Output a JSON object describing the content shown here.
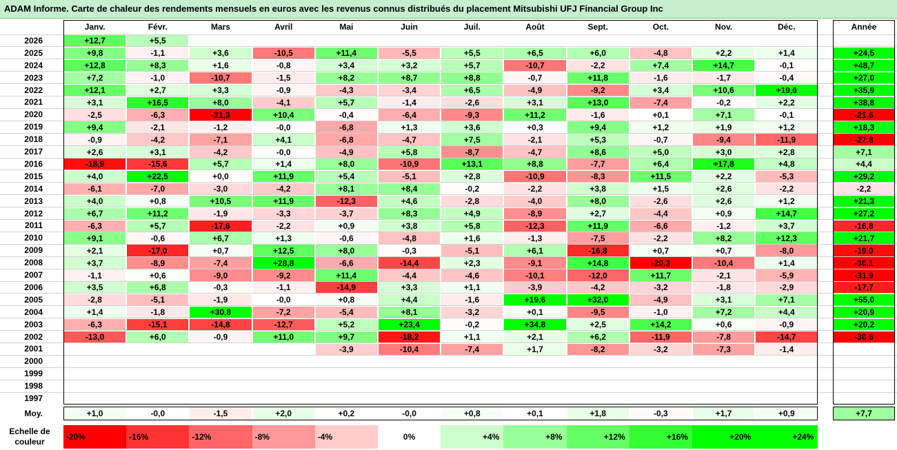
{
  "title": "ADAM Informe. Carte de chaleur des rendements mensuels en euros avec les revenus connus distribués du placement Mitsubishi UFJ Financial Group Inc",
  "chart_data": {
    "type": "heatmap",
    "columns": [
      "Janv.",
      "Févr.",
      "Mars",
      "Avril",
      "Mai",
      "Juin",
      "Juil.",
      "Août",
      "Sept.",
      "Oct.",
      "Nov.",
      "Déc."
    ],
    "annual_header": "Année",
    "rows": [
      {
        "year": "2026",
        "months": [
          "+12,7",
          "+5,5",
          "",
          "",
          "",
          "",
          "",
          "",
          "",
          "",
          "",
          ""
        ],
        "annual": ""
      },
      {
        "year": "2025",
        "months": [
          "+9,8",
          "-1,1",
          "+3,6",
          "-10,5",
          "+11,4",
          "-5,5",
          "+5,5",
          "+6,5",
          "+6,0",
          "-4,8",
          "+2,2",
          "+1,4"
        ],
        "annual": "+24,5"
      },
      {
        "year": "2024",
        "months": [
          "+12,8",
          "+8,3",
          "+1,6",
          "-0,8",
          "+3,4",
          "+3,2",
          "+5,7",
          "-10,7",
          "-2,2",
          "+7,4",
          "+14,7",
          "-0,1"
        ],
        "annual": "+48,7"
      },
      {
        "year": "2023",
        "months": [
          "+7,2",
          "-1,0",
          "-10,7",
          "-1,5",
          "+8,2",
          "+8,7",
          "+8,8",
          "-0,7",
          "+11,8",
          "-1,6",
          "-1,7",
          "-0,4"
        ],
        "annual": "+27,0"
      },
      {
        "year": "2022",
        "months": [
          "+12,1",
          "+2,7",
          "+3,3",
          "-0,9",
          "-4,3",
          "-3,4",
          "+6,5",
          "-4,9",
          "-9,2",
          "+3,4",
          "+10,6",
          "+19,6"
        ],
        "annual": "+35,9"
      },
      {
        "year": "2021",
        "months": [
          "+3,1",
          "+16,5",
          "+8,0",
          "-4,1",
          "+5,7",
          "-1,4",
          "-2,6",
          "+3,1",
          "+13,0",
          "-7,4",
          "-0,2",
          "+2,2"
        ],
        "annual": "+38,8"
      },
      {
        "year": "2020",
        "months": [
          "-2,5",
          "-6,3",
          "-21,3",
          "+10,4",
          "-0,4",
          "-6,4",
          "-9,3",
          "+11,2",
          "-1,6",
          "+0,1",
          "+7,1",
          "-0,1"
        ],
        "annual": "-21,6"
      },
      {
        "year": "2019",
        "months": [
          "+9,4",
          "-2,1",
          "-1,2",
          "-0,0",
          "-6,8",
          "+1,3",
          "+3,6",
          "+0,3",
          "+9,4",
          "+1,2",
          "+1,9",
          "+1,2"
        ],
        "annual": "+18,3"
      },
      {
        "year": "2018",
        "months": [
          "-0,9",
          "-4,2",
          "-7,1",
          "+4,1",
          "-6,8",
          "-4,7",
          "+7,5",
          "-2,1",
          "+5,3",
          "-0,7",
          "-9,4",
          "-11,9"
        ],
        "annual": "-27,8"
      },
      {
        "year": "2017",
        "months": [
          "+2,6",
          "+3,1",
          "-4,2",
          "-0,0",
          "-4,9",
          "+5,8",
          "-8,7",
          "-4,7",
          "+8,6",
          "+5,0",
          "+3,0",
          "+2,8"
        ],
        "annual": "+7,1"
      },
      {
        "year": "2016",
        "months": [
          "-18,9",
          "-15,6",
          "+5,7",
          "+1,4",
          "+8,0",
          "-10,9",
          "+13,1",
          "+8,8",
          "-7,7",
          "+6,4",
          "+17,8",
          "+4,8"
        ],
        "annual": "+4,4"
      },
      {
        "year": "2015",
        "months": [
          "+4,0",
          "+22,5",
          "+0,0",
          "+11,9",
          "+5,4",
          "-5,1",
          "+2,8",
          "-10,9",
          "-8,3",
          "+11,5",
          "+2,2",
          "-5,3"
        ],
        "annual": "+29,2"
      },
      {
        "year": "2014",
        "months": [
          "-6,1",
          "-7,0",
          "-3,0",
          "-4,2",
          "+8,1",
          "+8,4",
          "-0,2",
          "-2,2",
          "+3,8",
          "+1,5",
          "+2,6",
          "-2,2"
        ],
        "annual": "-2,2"
      },
      {
        "year": "2013",
        "months": [
          "+4,0",
          "+0,8",
          "+10,5",
          "+11,9",
          "-12,3",
          "+4,6",
          "-2,8",
          "-4,0",
          "+8,0",
          "-2,6",
          "+2,6",
          "+1,2"
        ],
        "annual": "+21,3"
      },
      {
        "year": "2012",
        "months": [
          "+6,7",
          "+11,2",
          "-1,9",
          "-3,3",
          "-3,7",
          "+8,3",
          "+4,9",
          "-8,9",
          "+2,7",
          "-4,4",
          "+0,9",
          "+14,7"
        ],
        "annual": "+27,2"
      },
      {
        "year": "2011",
        "months": [
          "-6,3",
          "+5,7",
          "-17,6",
          "-2,2",
          "+0,9",
          "+3,8",
          "+5,8",
          "-12,3",
          "+11,9",
          "-6,6",
          "-1,2",
          "+3,7"
        ],
        "annual": "-16,8"
      },
      {
        "year": "2010",
        "months": [
          "+9,1",
          "-0,6",
          "+6,7",
          "+1,3",
          "-0,6",
          "-4,8",
          "+1,6",
          "-1,3",
          "-7,5",
          "-2,2",
          "+8,2",
          "+12,3"
        ],
        "annual": "+21,7"
      },
      {
        "year": "2009",
        "months": [
          "+2,1",
          "-17,0",
          "+0,7",
          "+12,5",
          "+8,0",
          "-0,3",
          "-5,1",
          "+6,1",
          "-16,8",
          "+0,7",
          "+0,7",
          "-8,0"
        ],
        "annual": "-19,0"
      },
      {
        "year": "2008",
        "months": [
          "+3,7",
          "-8,9",
          "-7,4",
          "+28,8",
          "-6,6",
          "-14,4",
          "+2,3",
          "-9,1",
          "+14,8",
          "-20,3",
          "-10,4",
          "+1,4"
        ],
        "annual": "-30,1"
      },
      {
        "year": "2007",
        "months": [
          "-1,1",
          "+0,6",
          "-9,0",
          "-9,2",
          "+11,4",
          "-4,4",
          "-4,6",
          "-10,1",
          "-12,0",
          "+11,7",
          "-2,1",
          "-5,9"
        ],
        "annual": "-31,9"
      },
      {
        "year": "2006",
        "months": [
          "+3,5",
          "+6,8",
          "-0,3",
          "-1,1",
          "-14,9",
          "+3,3",
          "+1,1",
          "-3,9",
          "-4,2",
          "-3,2",
          "-1,8",
          "-2,9"
        ],
        "annual": "-17,7"
      },
      {
        "year": "2005",
        "months": [
          "-2,8",
          "-5,1",
          "-1,9",
          "-0,0",
          "+0,8",
          "+4,4",
          "-1,6",
          "+19,6",
          "+32,0",
          "-4,9",
          "+3,1",
          "+7,1"
        ],
        "annual": "+55,0"
      },
      {
        "year": "2004",
        "months": [
          "+1,4",
          "-1,8",
          "+30,8",
          "-7,2",
          "-5,4",
          "+8,1",
          "-3,2",
          "+0,1",
          "-9,5",
          "-1,0",
          "+7,2",
          "+4,4"
        ],
        "annual": "+20,9"
      },
      {
        "year": "2003",
        "months": [
          "-6,3",
          "-15,1",
          "-14,8",
          "-12,7",
          "+5,2",
          "+23,4",
          "-0,2",
          "+34,8",
          "+2,5",
          "+14,2",
          "+0,6",
          "-0,9"
        ],
        "annual": "+20,2"
      },
      {
        "year": "2002",
        "months": [
          "-13,0",
          "+6,0",
          "-0,9",
          "+11,0",
          "+9,7",
          "-18,2",
          "+1,1",
          "+2,1",
          "+6,2",
          "-11,9",
          "-7,8",
          "-14,7"
        ],
        "annual": "-30,6"
      },
      {
        "year": "2001",
        "months": [
          "",
          "",
          "",
          "",
          "-3,9",
          "-10,4",
          "-7,4",
          "+1,7",
          "-8,2",
          "-3,2",
          "-7,3",
          "-1,4"
        ],
        "annual": ""
      },
      {
        "year": "2000",
        "months": [
          "",
          "",
          "",
          "",
          "",
          "",
          "",
          "",
          "",
          "",
          "",
          ""
        ],
        "annual": ""
      },
      {
        "year": "1999",
        "months": [
          "",
          "",
          "",
          "",
          "",
          "",
          "",
          "",
          "",
          "",
          "",
          ""
        ],
        "annual": ""
      },
      {
        "year": "1998",
        "months": [
          "",
          "",
          "",
          "",
          "",
          "",
          "",
          "",
          "",
          "",
          "",
          ""
        ],
        "annual": ""
      },
      {
        "year": "1997",
        "months": [
          "",
          "",
          "",
          "",
          "",
          "",
          "",
          "",
          "",
          "",
          "",
          ""
        ],
        "annual": ""
      }
    ],
    "average": {
      "label": "Moy.",
      "months": [
        "+1,0",
        "-0,0",
        "-1,5",
        "+2,0",
        "+0,2",
        "-0,0",
        "+0,8",
        "+0,1",
        "+1,8",
        "-0,3",
        "+1,7",
        "+0,9"
      ],
      "annual": "+7,7"
    },
    "color_scale": {
      "label_line1": "Echelle de",
      "label_line2": "couleur",
      "stops": [
        "-20%",
        "-16%",
        "-12%",
        "-8%",
        "-4%",
        "0%",
        "+4%",
        "+8%",
        "+12%",
        "+16%",
        "+20%",
        "+24%"
      ],
      "stop_values": [
        -20,
        -16,
        -12,
        -8,
        -4,
        0,
        4,
        8,
        12,
        16,
        20,
        24
      ]
    },
    "colors": {
      "negative": "#ff0000",
      "positive": "#00ff00",
      "neutral": "#ffffff",
      "title_bg": "#c6efce"
    }
  }
}
